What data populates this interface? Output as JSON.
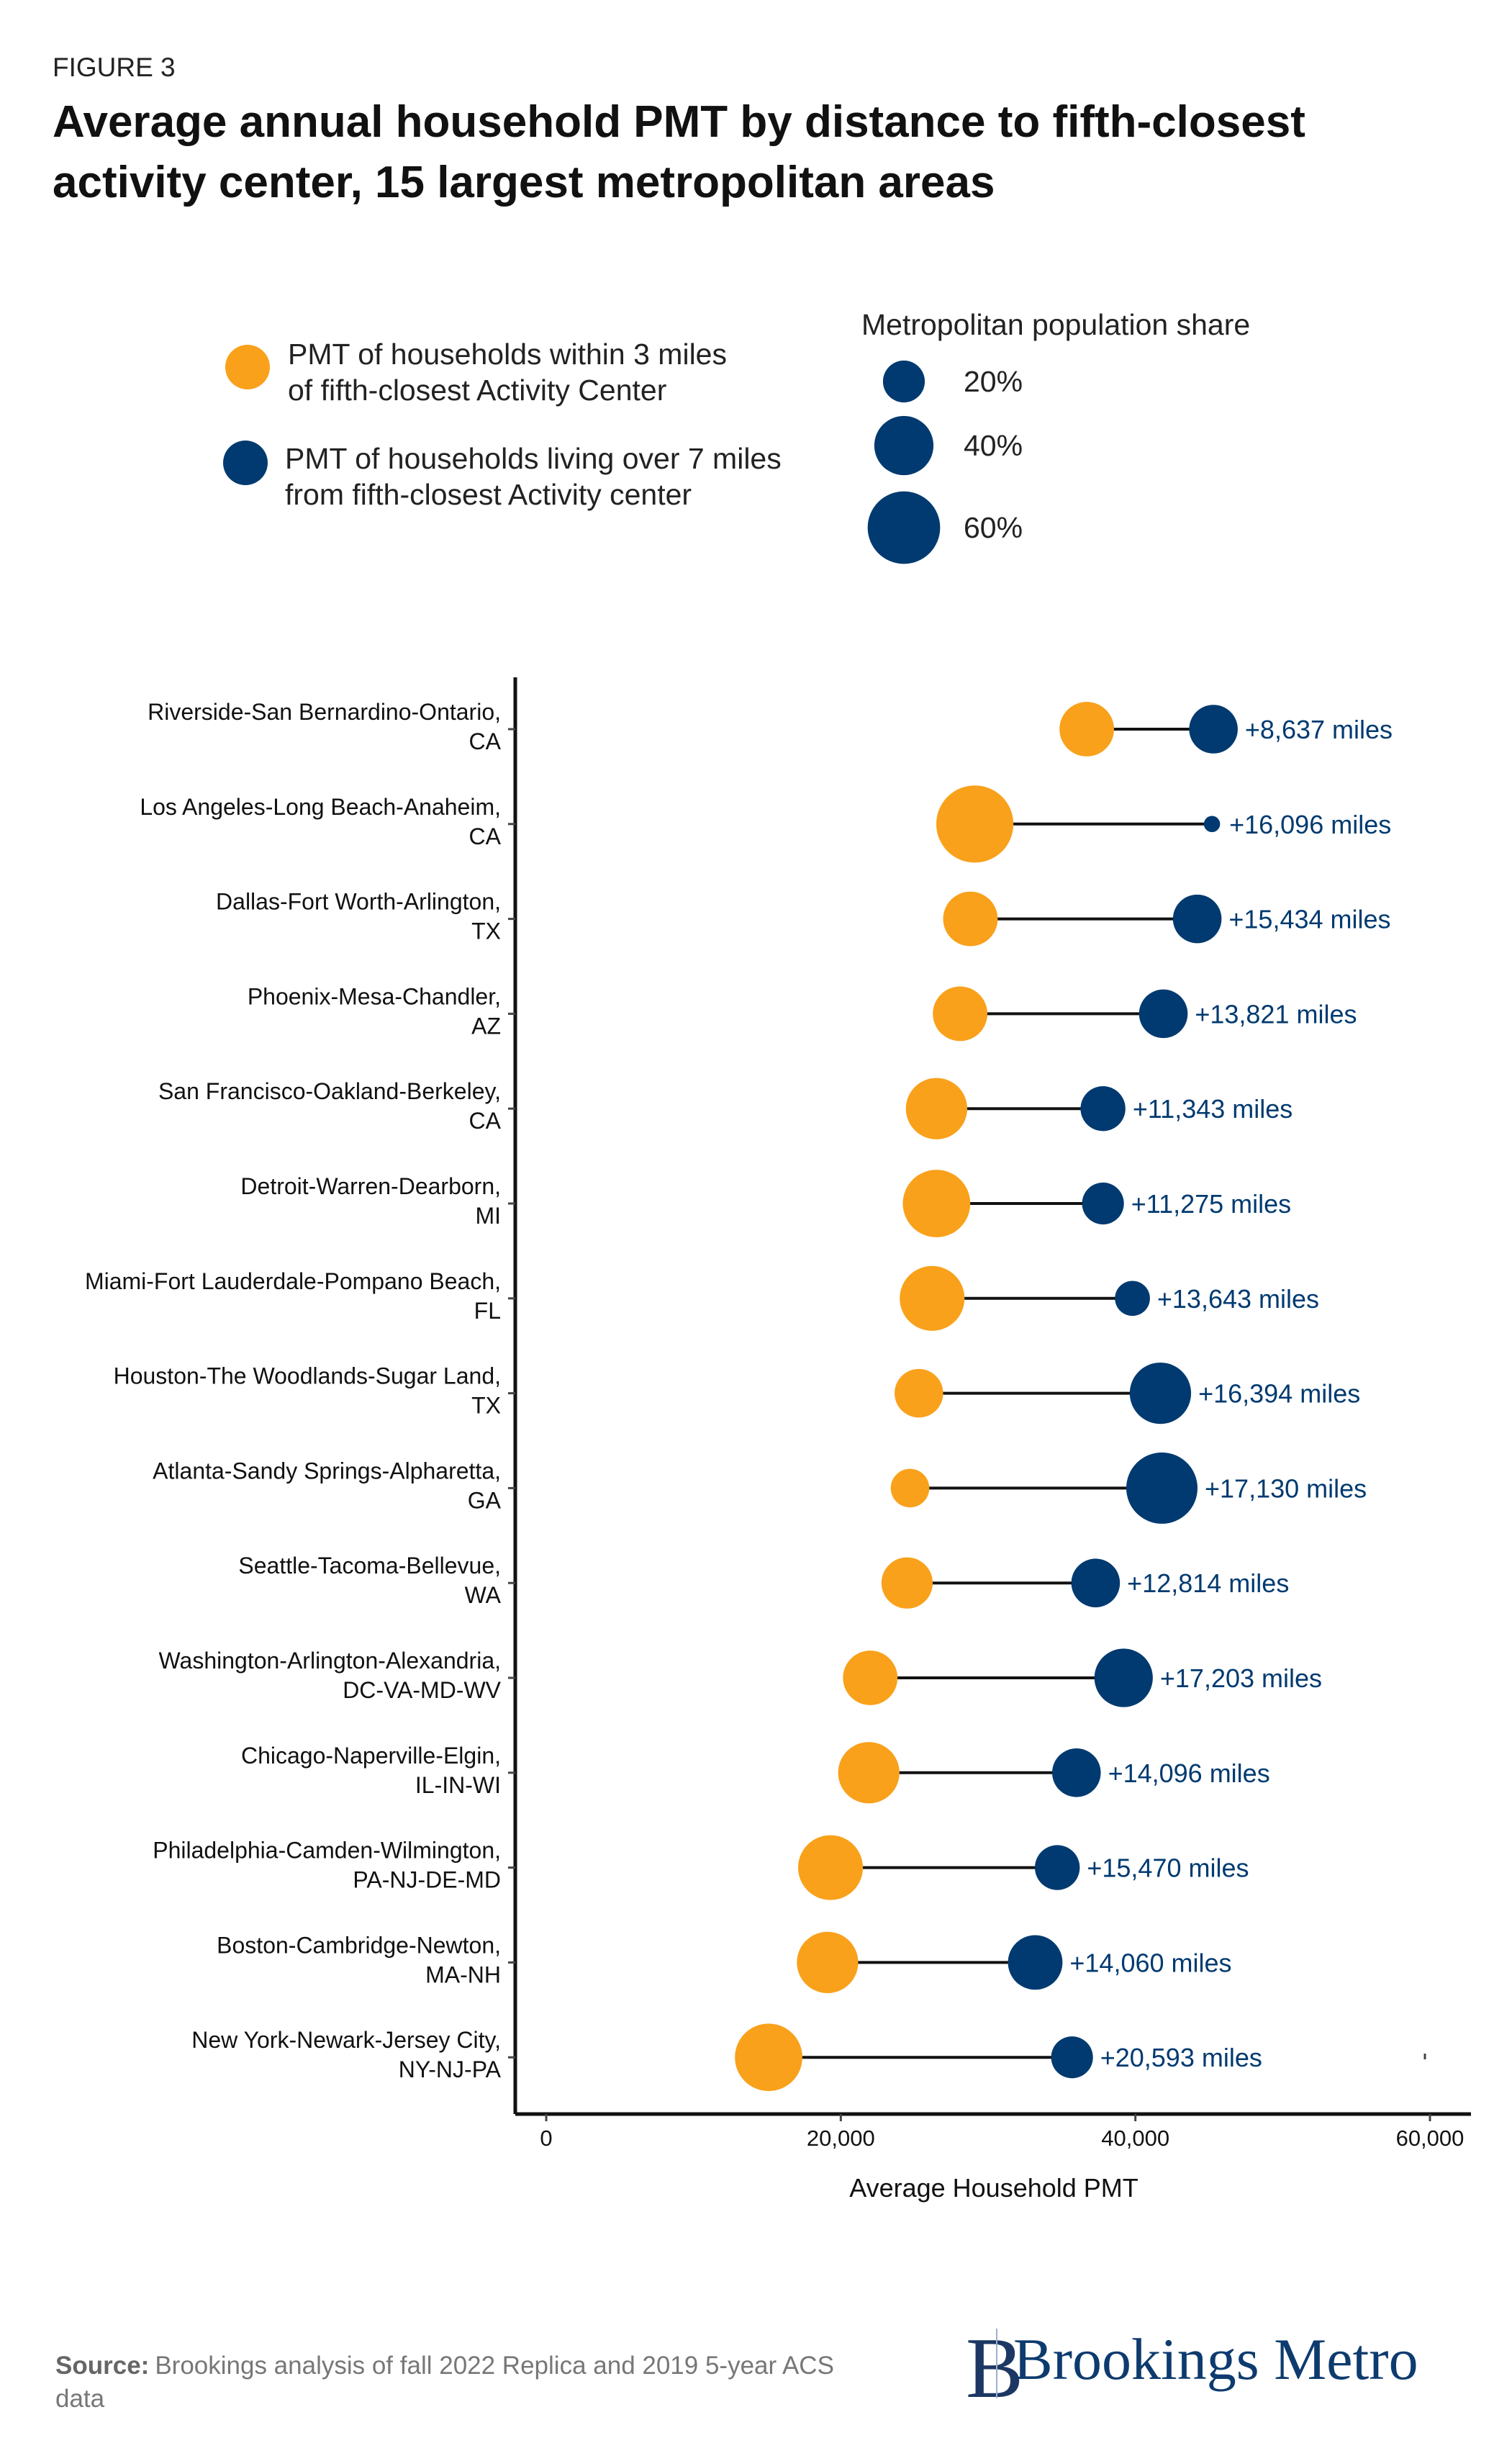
{
  "header": {
    "figure_label": "FIGURE 3",
    "title_lines": [
      "Average annual household PMT by distance to fifth-closest",
      "activity center, 15 largest metropolitan areas"
    ]
  },
  "legend": {
    "series": [
      {
        "lines": [
          "PMT of households within 3 miles",
          "of fifth-closest Activity Center"
        ],
        "color": "#F9A11B"
      },
      {
        "lines": [
          "PMT of households living over 7 miles",
          "from fifth-closest Activity center"
        ],
        "color": "#003A70"
      }
    ],
    "size_title": "Metropolitan population share",
    "size_items": [
      {
        "label": "20%",
        "value": 0.2
      },
      {
        "label": "40%",
        "value": 0.4
      },
      {
        "label": "60%",
        "value": 0.6
      }
    ]
  },
  "chart_data": {
    "type": "dumbbell",
    "xlabel": "Average Household PMT",
    "xlim": [
      0,
      62000
    ],
    "xticks": [
      0,
      20000,
      40000,
      60000
    ],
    "xtick_labels": [
      "0",
      "20,000",
      "40,000",
      "60,000"
    ],
    "grid": false,
    "size_encoding": "Metropolitan population share",
    "series": [
      {
        "key": "near",
        "name": "PMT of households within 3 miles of fifth-closest Activity Center",
        "color": "#F9A11B"
      },
      {
        "key": "far",
        "name": "PMT of households living over 7 miles from fifth-closest Activity center",
        "color": "#003A70"
      }
    ],
    "rows": [
      {
        "metro": [
          "Riverside-San Bernardino-Ontario,",
          "CA"
        ],
        "near": 36700,
        "far": 45300,
        "near_share": 0.34,
        "far_share": 0.27,
        "label": "+8,637 miles"
      },
      {
        "metro": [
          "Los Angeles-Long Beach-Anaheim,",
          "CA"
        ],
        "near": 29100,
        "far": 45200,
        "near_share": 0.68,
        "far_share": 0.03,
        "label": "+16,096 miles"
      },
      {
        "metro": [
          "Dallas-Fort Worth-Arlington,",
          "TX"
        ],
        "near": 28800,
        "far": 44200,
        "near_share": 0.34,
        "far_share": 0.27,
        "label": "+15,434 miles"
      },
      {
        "metro": [
          "Phoenix-Mesa-Chandler,",
          "AZ"
        ],
        "near": 28100,
        "far": 41900,
        "near_share": 0.34,
        "far_share": 0.27,
        "label": "+13,821 miles"
      },
      {
        "metro": [
          "San Francisco-Oakland-Berkeley,",
          "CA"
        ],
        "near": 26500,
        "far": 37800,
        "near_share": 0.43,
        "far_share": 0.23,
        "label": "+11,343 miles"
      },
      {
        "metro": [
          "Detroit-Warren-Dearborn,",
          "MI"
        ],
        "near": 26500,
        "far": 37800,
        "near_share": 0.52,
        "far_share": 0.2,
        "label": "+11,275 miles"
      },
      {
        "metro": [
          "Miami-Fort Lauderdale-Pompano Beach,",
          "FL"
        ],
        "near": 26200,
        "far": 39800,
        "near_share": 0.48,
        "far_share": 0.14,
        "label": "+13,643 miles"
      },
      {
        "metro": [
          "Houston-The Woodlands-Sugar Land,",
          "TX"
        ],
        "near": 25300,
        "far": 41700,
        "near_share": 0.27,
        "far_share": 0.43,
        "label": "+16,394 miles"
      },
      {
        "metro": [
          "Atlanta-Sandy Springs-Alpharetta,",
          "GA"
        ],
        "near": 24700,
        "far": 41800,
        "near_share": 0.17,
        "far_share": 0.58,
        "label": "+17,130 miles"
      },
      {
        "metro": [
          "Seattle-Tacoma-Bellevue,",
          "WA"
        ],
        "near": 24500,
        "far": 37300,
        "near_share": 0.3,
        "far_share": 0.27,
        "label": "+12,814 miles"
      },
      {
        "metro": [
          "Washington-Arlington-Alexandria,",
          "DC-VA-MD-WV"
        ],
        "near": 22000,
        "far": 39200,
        "near_share": 0.34,
        "far_share": 0.39,
        "label": "+17,203 miles"
      },
      {
        "metro": [
          "Chicago-Naperville-Elgin,",
          "IL-IN-WI"
        ],
        "near": 21900,
        "far": 36000,
        "near_share": 0.43,
        "far_share": 0.27,
        "label": "+14,096 miles"
      },
      {
        "metro": [
          "Philadelphia-Camden-Wilmington,",
          "PA-NJ-DE-MD"
        ],
        "near": 19300,
        "far": 34700,
        "near_share": 0.48,
        "far_share": 0.23,
        "label": "+15,470 miles"
      },
      {
        "metro": [
          "Boston-Cambridge-Newton,",
          "MA-NH"
        ],
        "near": 19100,
        "far": 33200,
        "near_share": 0.43,
        "far_share": 0.34,
        "label": "+14,060 miles"
      },
      {
        "metro": [
          "New York-Newark-Jersey City,",
          "NY-NJ-PA"
        ],
        "near": 15100,
        "far": 35700,
        "near_share": 0.52,
        "far_share": 0.2,
        "label": "+20,593 miles"
      }
    ]
  },
  "footer": {
    "source_label": "Source:",
    "source_lines": [
      "Brookings analysis of fall 2022 Replica and 2019 5-year ACS",
      "data"
    ],
    "logo_text": "Brookings Metro",
    "logo_mark": "B"
  }
}
